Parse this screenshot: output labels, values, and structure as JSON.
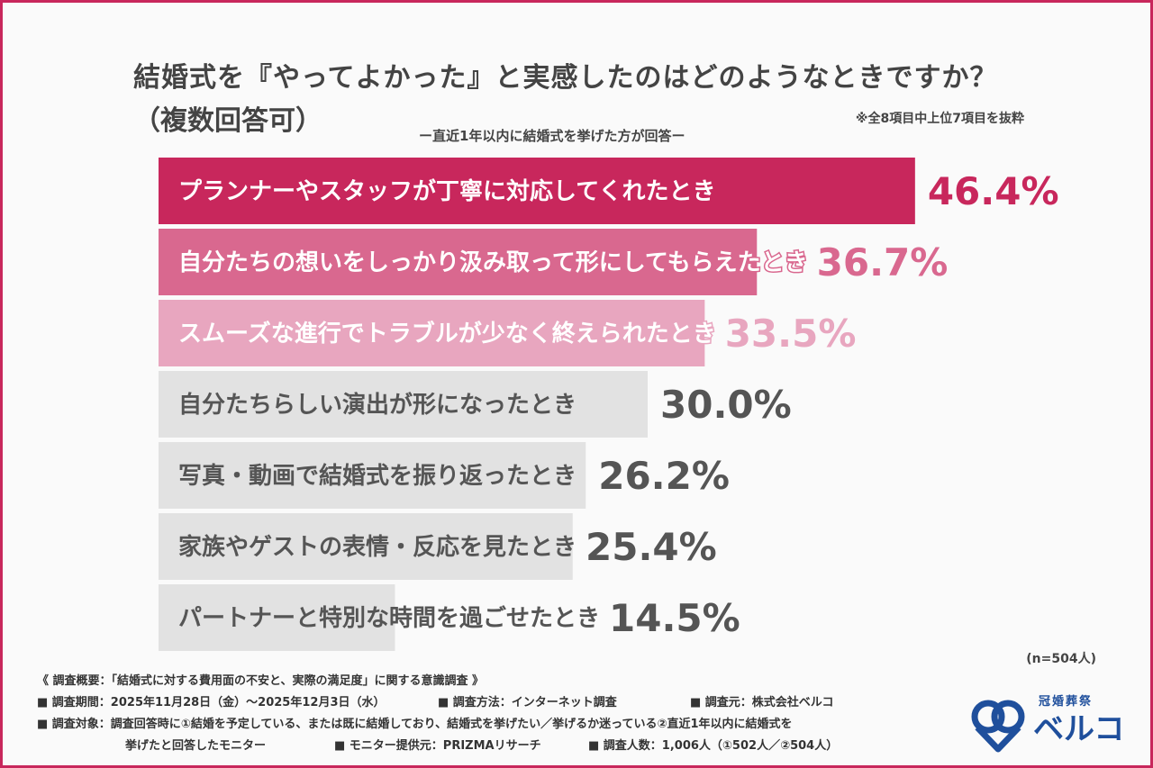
{
  "header": {
    "title_line1": "結婚式を『やってよかった』と実感したのはどのようなときですか？",
    "title_line2": "（複数回答可）",
    "subtitle": "ー直近1年以内に結婚式を挙げた方が回答ー",
    "note": "※全8項目中上位7項目を抜粋"
  },
  "chart_data": {
    "type": "bar",
    "orientation": "horizontal",
    "unit": "%",
    "categories": [
      "プランナーやスタッフが丁寧に対応してくれたとき",
      "自分たちの想いをしっかり汲み取って形にしてもらえたとき",
      "スムーズな進行でトラブルが少なく終えられたとき",
      "自分たちらしい演出が形になったとき",
      "写真・動画で結婚式を振り返ったとき",
      "家族やゲストの表情・反応を見たとき",
      "パートナーと特別な時間を過ごせたとき"
    ],
    "values": [
      46.4,
      36.7,
      33.5,
      30.0,
      26.2,
      25.4,
      14.5
    ],
    "value_labels": [
      "46.4%",
      "36.7%",
      "33.5%",
      "30.0%",
      "26.2%",
      "25.4%",
      "14.5%"
    ],
    "colors": [
      "#c8275c",
      "#d9688f",
      "#e8a6bf",
      "#e2e2e2",
      "#e2e2e2",
      "#e2e2e2",
      "#e2e2e2"
    ],
    "label_colors": [
      "#c8275c",
      "#d9688f",
      "#e8a6bf",
      "#555555",
      "#555555",
      "#555555",
      "#555555"
    ],
    "sample": "(n=504人)"
  },
  "footer": {
    "line1": "《 調査概要：「結婚式に対する費用面の不安と、実際の満足度」に関する意識調査 》",
    "period": "■ 調査期間：2025年11月28日（金）〜2025年12月3日（水）",
    "method": "■ 調査方法：インターネット調査",
    "source": "■ 調査元：株式会社ベルコ",
    "target": "■ 調査対象：調査回答時に①結婚を予定している、または既に結婚しており、結婚式を挙げたい／挙げるか迷っている②直近1年以内に結婚式を",
    "target_cont": "挙げたと回答したモニター",
    "provider": "■ モニター提供元：PRIZMAリサーチ",
    "count": "■ 調査人数：1,006人（①502人／②504人）"
  },
  "logo": {
    "small_text": "冠婚葬祭",
    "main_text": "ベルコ",
    "brand_color": "#1f4f9c",
    "icon": "belco-logo-icon"
  }
}
